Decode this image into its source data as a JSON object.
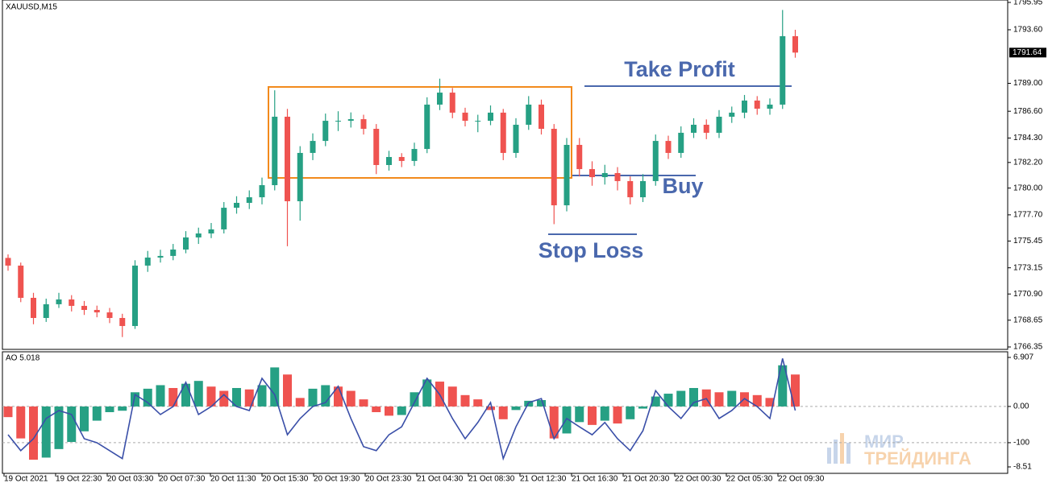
{
  "chart_data": [
    {
      "type": "candlestick",
      "title": "XAUUSD,M15",
      "up_color": "#26a084",
      "down_color": "#ef5350",
      "ylim": [
        1766.35,
        1795.95
      ],
      "yticks": [
        {
          "value": 1795.95,
          "label": "1795.95"
        },
        {
          "value": 1793.6,
          "label": "1793.60"
        },
        {
          "value": 1789.0,
          "label": "1789.00"
        },
        {
          "value": 1786.6,
          "label": "1786.60"
        },
        {
          "value": 1784.3,
          "label": "1784.30"
        },
        {
          "value": 1782.2,
          "label": "1782.20"
        },
        {
          "value": 1780.0,
          "label": "1780.00"
        },
        {
          "value": 1777.7,
          "label": "1777.70"
        },
        {
          "value": 1775.45,
          "label": "1775.45"
        },
        {
          "value": 1773.15,
          "label": "1773.15"
        },
        {
          "value": 1770.9,
          "label": "1770.90"
        },
        {
          "value": 1768.65,
          "label": "1768.65"
        },
        {
          "value": 1766.35,
          "label": "1766.35"
        }
      ],
      "current_price": 1791.64,
      "x_labels": [
        "19 Oct 2021",
        "19 Oct 22:30",
        "20 Oct 03:30",
        "20 Oct 07:30",
        "20 Oct 11:30",
        "20 Oct 15:30",
        "20 Oct 19:30",
        "20 Oct 23:30",
        "21 Oct 04:30",
        "21 Oct 08:30",
        "21 Oct 12:30",
        "21 Oct 16:30",
        "21 Oct 20:30",
        "22 Oct 00:30",
        "22 Oct 05:30",
        "22 Oct 09:30"
      ],
      "annotations": [
        "Take Profit",
        "Buy",
        "Stop Loss"
      ],
      "watermark": [
        "МИР",
        "ТРЕЙДИНГА"
      ],
      "candles": [
        [
          1774.0,
          1774.3,
          1772.9,
          1773.34
        ],
        [
          1773.34,
          1773.6,
          1770.2,
          1770.57
        ],
        [
          1770.57,
          1771.0,
          1768.3,
          1768.84
        ],
        [
          1768.84,
          1770.5,
          1768.5,
          1770.02
        ],
        [
          1770.02,
          1771.0,
          1769.7,
          1770.43
        ],
        [
          1770.43,
          1770.8,
          1769.4,
          1769.88
        ],
        [
          1769.88,
          1770.3,
          1769.1,
          1769.53
        ],
        [
          1769.53,
          1769.9,
          1768.9,
          1769.32
        ],
        [
          1769.32,
          1769.7,
          1768.4,
          1768.84
        ],
        [
          1768.84,
          1769.2,
          1767.2,
          1768.15
        ],
        [
          1768.15,
          1773.8,
          1767.9,
          1773.34
        ],
        [
          1773.34,
          1774.6,
          1772.8,
          1774.03
        ],
        [
          1774.03,
          1774.7,
          1773.6,
          1774.17
        ],
        [
          1774.17,
          1775.2,
          1773.8,
          1774.72
        ],
        [
          1774.72,
          1776.3,
          1774.4,
          1775.76
        ],
        [
          1775.76,
          1776.6,
          1775.2,
          1776.1
        ],
        [
          1776.1,
          1777.0,
          1775.7,
          1776.45
        ],
        [
          1776.45,
          1778.8,
          1776.1,
          1778.31
        ],
        [
          1778.31,
          1779.3,
          1777.8,
          1778.73
        ],
        [
          1778.73,
          1779.8,
          1778.2,
          1779.21
        ],
        [
          1779.21,
          1780.9,
          1778.6,
          1780.25
        ],
        [
          1780.25,
          1788.4,
          1779.8,
          1786.13
        ],
        [
          1786.13,
          1786.8,
          1775.0,
          1778.87
        ],
        [
          1778.87,
          1783.6,
          1777.2,
          1783.02
        ],
        [
          1783.02,
          1784.7,
          1782.4,
          1784.05
        ],
        [
          1784.05,
          1786.4,
          1783.6,
          1785.78
        ],
        [
          1785.78,
          1786.6,
          1784.9,
          1785.78
        ],
        [
          1785.78,
          1786.5,
          1785.2,
          1785.92
        ],
        [
          1785.92,
          1786.3,
          1784.6,
          1785.09
        ],
        [
          1785.09,
          1785.5,
          1781.2,
          1781.98
        ],
        [
          1781.98,
          1783.2,
          1781.5,
          1782.67
        ],
        [
          1782.67,
          1783.0,
          1781.8,
          1782.33
        ],
        [
          1782.33,
          1783.9,
          1781.9,
          1783.36
        ],
        [
          1783.36,
          1787.8,
          1783.0,
          1787.17
        ],
        [
          1787.17,
          1789.4,
          1786.7,
          1788.2
        ],
        [
          1788.2,
          1788.6,
          1786.0,
          1786.48
        ],
        [
          1786.48,
          1786.9,
          1785.3,
          1785.78
        ],
        [
          1785.78,
          1786.3,
          1784.8,
          1785.78
        ],
        [
          1785.78,
          1787.1,
          1785.4,
          1786.48
        ],
        [
          1786.48,
          1786.8,
          1782.4,
          1783.02
        ],
        [
          1783.02,
          1786.0,
          1782.6,
          1785.44
        ],
        [
          1785.44,
          1787.9,
          1785.0,
          1787.17
        ],
        [
          1787.17,
          1787.6,
          1784.6,
          1785.09
        ],
        [
          1785.09,
          1785.5,
          1776.9,
          1778.52
        ],
        [
          1778.52,
          1784.3,
          1778.0,
          1783.71
        ],
        [
          1783.71,
          1784.3,
          1781.0,
          1781.63
        ],
        [
          1781.63,
          1782.3,
          1780.2,
          1780.94
        ],
        [
          1780.94,
          1782.0,
          1780.3,
          1781.29
        ],
        [
          1781.29,
          1781.8,
          1779.8,
          1780.6
        ],
        [
          1780.6,
          1781.0,
          1778.6,
          1779.21
        ],
        [
          1779.21,
          1781.2,
          1778.8,
          1780.6
        ],
        [
          1780.6,
          1784.6,
          1780.2,
          1784.05
        ],
        [
          1784.05,
          1784.5,
          1782.5,
          1783.02
        ],
        [
          1783.02,
          1785.3,
          1782.6,
          1784.75
        ],
        [
          1784.75,
          1786.0,
          1784.3,
          1785.44
        ],
        [
          1785.44,
          1785.9,
          1784.2,
          1784.75
        ],
        [
          1784.75,
          1786.7,
          1784.3,
          1786.13
        ],
        [
          1786.13,
          1787.0,
          1785.6,
          1786.48
        ],
        [
          1786.48,
          1788.0,
          1786.0,
          1787.52
        ],
        [
          1787.52,
          1787.9,
          1786.3,
          1786.82
        ],
        [
          1786.82,
          1787.7,
          1786.3,
          1787.17
        ],
        [
          1787.17,
          1795.3,
          1786.8,
          1793.05
        ],
        [
          1793.05,
          1793.6,
          1791.2,
          1791.64
        ]
      ]
    },
    {
      "type": "histogram",
      "title": "AO 5.018",
      "up_color": "#26a084",
      "down_color": "#ef5350",
      "ylim": [
        -8.51,
        6.907
      ],
      "yticks": [
        6.907,
        {
          "value": 0,
          "label": "0.00"
        },
        -8.51
      ],
      "values": [
        -1.5,
        -4.5,
        -7.5,
        -7.2,
        -6.0,
        -5.0,
        -3.5,
        -2.0,
        -0.8,
        -0.6,
        2.0,
        2.5,
        3.0,
        2.6,
        3.2,
        3.6,
        2.8,
        2.2,
        2.6,
        2.4,
        3.0,
        5.5,
        4.5,
        1.2,
        2.5,
        3.0,
        2.8,
        2.2,
        1.0,
        -0.8,
        -1.3,
        -1.2,
        2.0,
        3.8,
        3.5,
        2.8,
        1.6,
        1.0,
        -0.5,
        -1.8,
        -0.5,
        0.8,
        0.9,
        -4.5,
        -3.8,
        -2.2,
        -2.6,
        -2.0,
        -2.4,
        -1.8,
        -0.3,
        1.4,
        1.8,
        2.2,
        2.6,
        2.4,
        2.0,
        2.2,
        2.0,
        1.6,
        1.2,
        5.8,
        4.5
      ],
      "y2lim": [
        -167,
        136
      ],
      "y2ticks": [
        -100
      ],
      "line": {
        "color": "#3a4fa8",
        "axis": "y2",
        "values": [
          -78,
          -122,
          -89,
          -33,
          -11,
          -22,
          -89,
          -100,
          -122,
          -144,
          33,
          11,
          -22,
          0,
          67,
          -22,
          0,
          33,
          0,
          -11,
          78,
          33,
          -78,
          -33,
          0,
          11,
          56,
          -33,
          -111,
          -122,
          -78,
          -56,
          11,
          78,
          33,
          -33,
          -89,
          -44,
          11,
          -144,
          -56,
          11,
          22,
          -89,
          -33,
          -56,
          -78,
          -44,
          -89,
          -122,
          -67,
          44,
          0,
          -33,
          11,
          22,
          -33,
          -11,
          22,
          0,
          -33,
          133,
          -11
        ]
      }
    }
  ]
}
